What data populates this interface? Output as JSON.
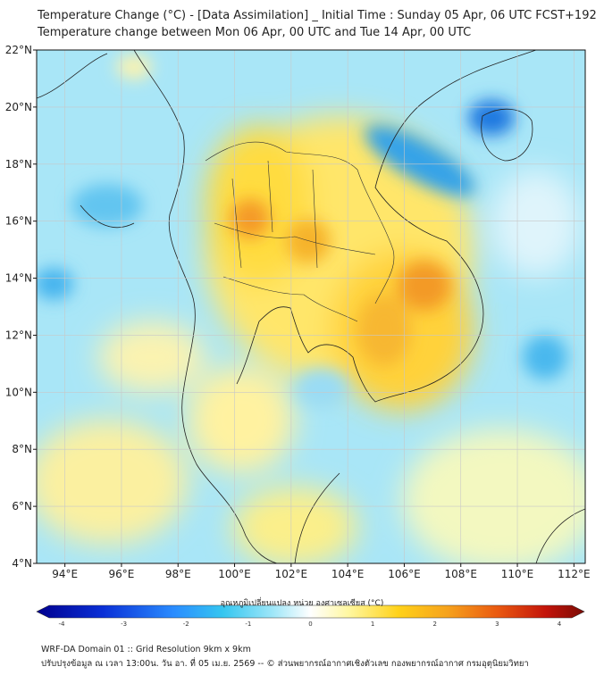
{
  "header": {
    "title_line1": "Temperature Change (°C) - [Data Assimilation] _ Initial Time : Sunday 05 Apr, 06 UTC FCST+192",
    "title_line2": "Temperature change between Mon 06 Apr, 00 UTC and Tue 14 Apr, 00 UTC"
  },
  "map": {
    "lon_ticks": [
      "94°E",
      "96°E",
      "98°E",
      "100°E",
      "102°E",
      "104°E",
      "106°E",
      "108°E",
      "110°E",
      "112°E"
    ],
    "lat_ticks": [
      "22°N",
      "20°N",
      "18°N",
      "16°N",
      "14°N",
      "12°N",
      "10°N",
      "8°N",
      "6°N",
      "4°N"
    ],
    "lon_range": [
      93.0,
      112.4
    ],
    "lat_range": [
      4.0,
      22.0
    ]
  },
  "colorbar": {
    "title": "อุณหภูมิเปลี่ยนแปลง หน่วย องศาเซลเซียส (°C)",
    "ticks": [
      "-4",
      "-3",
      "-2",
      "-1",
      "0",
      "1",
      "2",
      "3",
      "4"
    ],
    "range": [
      -4,
      4
    ],
    "colors": [
      "#00008f",
      "#0a2fd6",
      "#2a8cff",
      "#35c6f0",
      "#9de6f8",
      "#ffffff",
      "#fff7a0",
      "#ffd21a",
      "#f6a21c",
      "#ea5a10",
      "#c3140a",
      "#7a0b05"
    ]
  },
  "footer": {
    "line1": "WRF-DA Domain 01 :: Grid Resolution 9km x 9km",
    "line2": "ปรับปรุงข้อมูล ณ เวลา 13:00น. วัน อา. ที่ 05 เม.ย. 2569 -- © ส่วนพยากรณ์อากาศเชิงตัวเลข กองพยากรณ์อากาศ กรมอุตุนิยมวิทยา"
  }
}
